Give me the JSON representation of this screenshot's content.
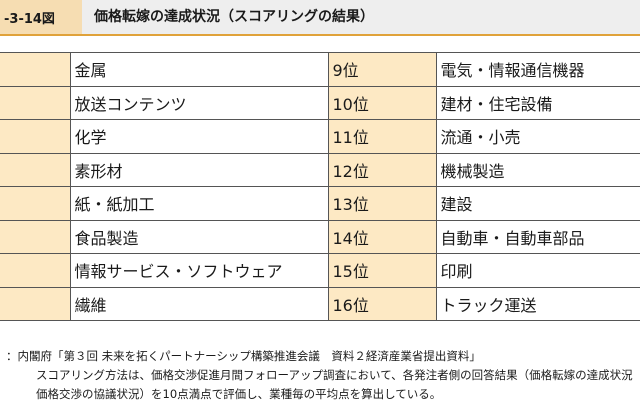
{
  "figure": {
    "label": "-3-14図",
    "title": "価格転嫁の達成状況（スコアリングの結果）"
  },
  "table": {
    "rows": [
      {
        "left_rank": "",
        "left_industry": "金属",
        "right_rank": "9位",
        "right_industry": "電気・情報通信機器"
      },
      {
        "left_rank": "",
        "left_industry": "放送コンテンツ",
        "right_rank": "10位",
        "right_industry": "建材・住宅設備"
      },
      {
        "left_rank": "",
        "left_industry": "化学",
        "right_rank": "11位",
        "right_industry": "流通・小売"
      },
      {
        "left_rank": "",
        "left_industry": "素形材",
        "right_rank": "12位",
        "right_industry": "機械製造"
      },
      {
        "left_rank": "",
        "left_industry": "紙・紙加工",
        "right_rank": "13位",
        "right_industry": "建設"
      },
      {
        "left_rank": "",
        "left_industry": "食品製造",
        "right_rank": "14位",
        "right_industry": "自動車・自動車部品"
      },
      {
        "left_rank": "",
        "left_industry": "情報サービス・ソフトウェア",
        "right_rank": "15位",
        "right_industry": "印刷"
      },
      {
        "left_rank": "",
        "left_industry": "繊維",
        "right_rank": "16位",
        "right_industry": "トラック運送"
      }
    ]
  },
  "notes": {
    "source": "：内閣府「第３回 未来を拓くパートナーシップ構築推進会議　資料２経済産業省提出資料」",
    "note_line1": "スコアリング方法は、価格交渉促進月間フォローアップ調査において、各発注者側の回答結果（価格転嫁の達成状況",
    "note_line2": "価格交渉の協議状況）を10点満点で評価し、業種毎の平均点を算出している。"
  }
}
